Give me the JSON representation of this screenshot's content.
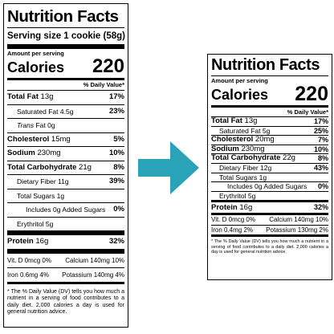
{
  "arrow_color": "#2aa3b8",
  "left": {
    "title": "Nutrition Facts",
    "serving": "Serving size 1 cookie (58g)",
    "amount_per_serving": "Amount per serving",
    "calories_label": "Calories",
    "calories_value": "220",
    "dv_header": "% Daily Value*",
    "rows": [
      {
        "label": "Total Fat",
        "amount": "13g",
        "pct": "17%",
        "bold": true,
        "indent": 0
      },
      {
        "label": "Saturated Fat",
        "amount": "4.5g",
        "pct": "23%",
        "bold": false,
        "indent": 1
      },
      {
        "label": "Trans",
        "label_suffix": " Fat",
        "amount": "0g",
        "pct": "",
        "bold": false,
        "indent": 1,
        "italic": true
      },
      {
        "label": "Cholesterol",
        "amount": "15mg",
        "pct": "5%",
        "bold": true,
        "indent": 0
      },
      {
        "label": "Sodium",
        "amount": "230mg",
        "pct": "10%",
        "bold": true,
        "indent": 0
      },
      {
        "label": "Total Carbohydrate",
        "amount": "21g",
        "pct": "8%",
        "bold": true,
        "indent": 0
      },
      {
        "label": "Dietary Fiber",
        "amount": "11g",
        "pct": "39%",
        "bold": false,
        "indent": 1
      },
      {
        "label": "Total Sugars",
        "amount": "1g",
        "pct": "",
        "bold": false,
        "indent": 1
      },
      {
        "label": "Includes",
        "amount": "0g Added Sugars",
        "pct": "0%",
        "bold": false,
        "indent": 2
      },
      {
        "label": "Erythritol",
        "amount": "5g",
        "pct": "",
        "bold": false,
        "indent": 1
      }
    ],
    "protein": {
      "label": "Protein",
      "amount": "16g",
      "pct": "32%"
    },
    "vitamins": [
      {
        "a": "Vit. D 0mcg 0%",
        "b": "Calcium 140mg 10%"
      },
      {
        "a": "Iron 0.6mg 4%",
        "b": "Potassium 140mg 4%"
      }
    ],
    "footnote": "* The % Daily Value (DV) tells you how much a nutrient in a serving of food contributes to a daily diet. 2,000 calories a day is used for general nutrition advice."
  },
  "right": {
    "title": "Nutrition Facts",
    "amount_per_serving": "Amount per serving",
    "calories_label": "Calories",
    "calories_value": "220",
    "dv_header": "% Daily Value*",
    "rows": [
      {
        "label": "Total Fat",
        "amount": "13g",
        "pct": "17%",
        "bold": true,
        "indent": 0
      },
      {
        "label": "Saturated Fat",
        "amount": "5g",
        "pct": "25%",
        "bold": false,
        "indent": 1
      },
      {
        "label": "Cholesterol",
        "amount": "20mg",
        "pct": "7%",
        "bold": true,
        "indent": 0
      },
      {
        "label": "Sodium",
        "amount": "230mg",
        "pct": "10%",
        "bold": true,
        "indent": 0
      },
      {
        "label": "Total Carbohydrate",
        "amount": "22g",
        "pct": "8%",
        "bold": true,
        "indent": 0
      },
      {
        "label": "Dietary Fiber",
        "amount": "12g",
        "pct": "43%",
        "bold": false,
        "indent": 1
      },
      {
        "label": "Total Sugars",
        "amount": "1g",
        "pct": "",
        "bold": false,
        "indent": 1
      },
      {
        "label": "Includes",
        "amount": "0g Added Sugars",
        "pct": "0%",
        "bold": false,
        "indent": 2
      },
      {
        "label": "Erythritol",
        "amount": "5g",
        "pct": "",
        "bold": false,
        "indent": 1
      }
    ],
    "protein": {
      "label": "Protein",
      "amount": "16g",
      "pct": "32%"
    },
    "vitamins": [
      {
        "a": "Vit. D 0mcg 0%",
        "b": "Calcium 140mg 10%"
      },
      {
        "a": "Iron 0.4mg 2%",
        "b": "Potassium 130mg 2%"
      }
    ],
    "footnote": "* The % Daily Value (DV) tells you how much a nutrient in a serving of food contributes to a daily diet. 2,000 calories a day is used for general nutrition advice."
  }
}
